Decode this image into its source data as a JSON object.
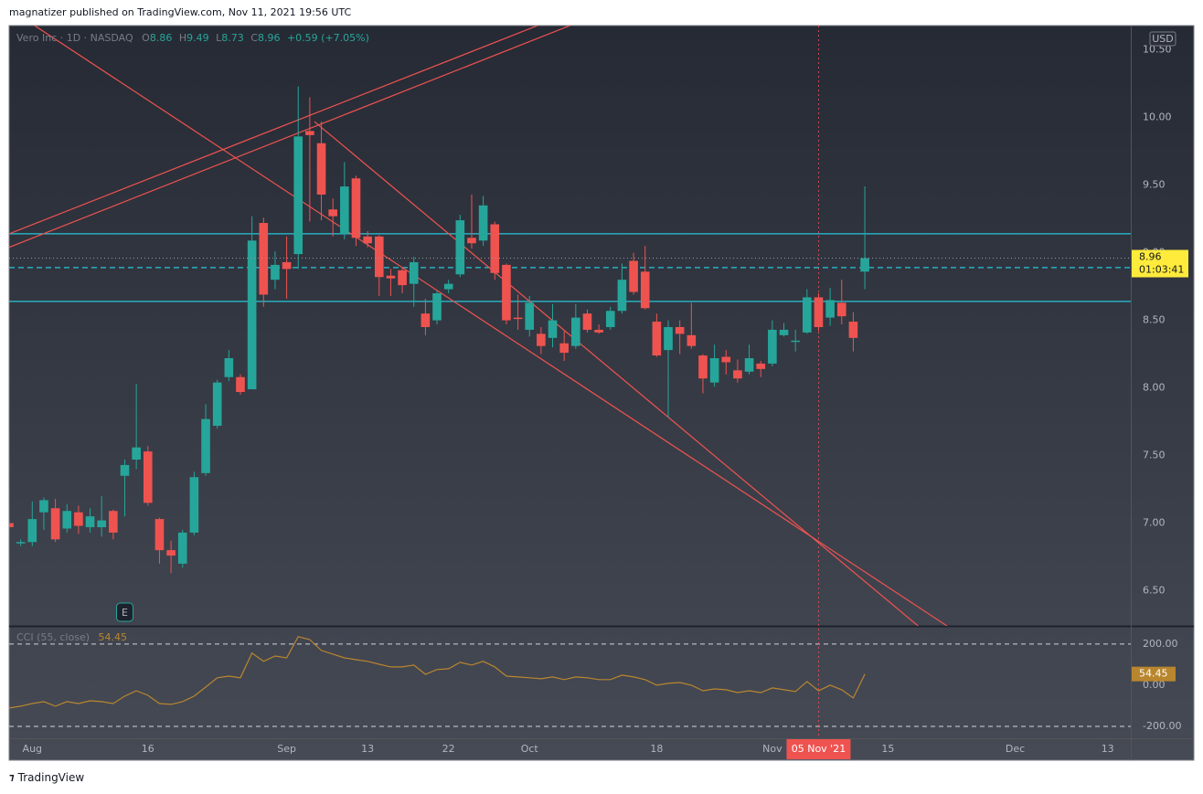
{
  "header": {
    "text": "magnatizer published on TradingView.com, Nov 11, 2021 19:56 UTC"
  },
  "footer": {
    "brand": "TradingView"
  },
  "chart_data": [
    {
      "type": "candlestick",
      "symbol": "Vero Inc · 1D · NASDAQ",
      "legend_keys": [
        "O",
        "H",
        "L",
        "C"
      ],
      "change_label": "+0.59 (+7.05%)",
      "currency": "USD",
      "countdown": "01:03:41",
      "up_color": "#26a69a",
      "down_color": "#ef5350",
      "grid": false,
      "categories": [
        null,
        null,
        "Aug",
        null,
        null,
        null,
        null,
        null,
        null,
        null,
        null,
        null,
        "16",
        null,
        null,
        null,
        null,
        null,
        null,
        null,
        null,
        null,
        null,
        null,
        "Sep",
        null,
        null,
        null,
        null,
        null,
        null,
        "13",
        null,
        null,
        null,
        null,
        null,
        null,
        "22",
        null,
        null,
        null,
        null,
        null,
        null,
        "Oct",
        null,
        null,
        null,
        null,
        null,
        null,
        null,
        null,
        null,
        null,
        "18",
        null,
        null,
        null,
        null,
        null,
        null,
        null,
        null,
        null,
        "Nov",
        null,
        null,
        null,
        null,
        null,
        null,
        null,
        null,
        null,
        "15",
        null,
        null,
        null,
        null,
        null,
        null,
        null,
        null,
        null,
        null,
        "Dec",
        null,
        null,
        null,
        null,
        null,
        null,
        null,
        "13",
        null
      ],
      "open": [
        7.0,
        6.85,
        6.86,
        7.08,
        7.11,
        6.96,
        7.08,
        6.97,
        6.97,
        7.09,
        7.35,
        7.47,
        7.53,
        7.03,
        6.8,
        6.7,
        6.93,
        7.37,
        7.72,
        8.08,
        8.08,
        7.99,
        9.22,
        8.8,
        8.93,
        8.99,
        9.9,
        9.81,
        9.32,
        9.14,
        9.55,
        9.12,
        9.12,
        8.83,
        8.87,
        8.77,
        8.55,
        8.5,
        8.73,
        8.84,
        9.11,
        9.09,
        9.21,
        8.91,
        8.52,
        8.43,
        8.4,
        8.37,
        8.33,
        8.31,
        8.55,
        8.43,
        8.45,
        8.57,
        8.94,
        8.86,
        8.49,
        8.28,
        8.45,
        8.39,
        8.24,
        8.04,
        8.23,
        8.13,
        8.12,
        8.18,
        8.18,
        8.39,
        8.34,
        8.41,
        8.67,
        8.52,
        8.63,
        8.49,
        8.86,
        null,
        null,
        null,
        null,
        null,
        null,
        null,
        null,
        null,
        null,
        null,
        null,
        null,
        null,
        null,
        null,
        null,
        null,
        null,
        null,
        null,
        null
      ],
      "high": [
        7.02,
        6.88,
        7.16,
        7.19,
        7.18,
        7.14,
        7.13,
        7.11,
        7.2,
        7.1,
        7.47,
        8.03,
        7.57,
        7.04,
        6.87,
        6.95,
        7.38,
        7.88,
        8.06,
        8.28,
        8.1,
        9.27,
        9.26,
        9.01,
        9.12,
        10.23,
        10.15,
        9.97,
        9.4,
        9.67,
        9.57,
        9.16,
        9.13,
        8.88,
        8.89,
        8.97,
        8.66,
        8.72,
        8.8,
        9.28,
        9.43,
        9.42,
        9.23,
        8.92,
        8.69,
        8.68,
        8.45,
        8.62,
        8.42,
        8.62,
        8.58,
        8.47,
        8.6,
        8.92,
        9.0,
        9.05,
        8.55,
        8.5,
        8.5,
        8.63,
        8.25,
        8.32,
        8.28,
        8.21,
        8.32,
        8.2,
        8.5,
        8.48,
        8.43,
        8.73,
        8.7,
        8.74,
        8.8,
        8.56,
        9.49,
        null,
        null,
        null,
        null,
        null,
        null,
        null,
        null,
        null,
        null,
        null,
        null,
        null,
        null,
        null,
        null,
        null,
        null,
        null,
        null,
        null,
        null
      ],
      "low": [
        6.95,
        6.83,
        6.83,
        6.95,
        6.86,
        6.93,
        6.92,
        6.93,
        6.9,
        6.88,
        7.05,
        7.4,
        7.13,
        6.7,
        6.63,
        6.67,
        6.91,
        7.35,
        7.7,
        8.05,
        7.95,
        7.99,
        8.6,
        8.73,
        8.66,
        8.88,
        9.23,
        9.24,
        9.12,
        9.1,
        9.05,
        9.04,
        8.68,
        8.68,
        8.7,
        8.6,
        8.39,
        8.47,
        8.7,
        8.82,
        9.03,
        9.05,
        8.8,
        8.47,
        8.43,
        8.38,
        8.25,
        8.3,
        8.2,
        8.29,
        8.41,
        8.4,
        8.43,
        8.55,
        8.69,
        8.58,
        8.23,
        7.78,
        8.25,
        8.29,
        7.96,
        8.01,
        8.1,
        8.04,
        8.1,
        8.08,
        8.16,
        8.38,
        8.27,
        8.4,
        8.42,
        8.46,
        8.47,
        8.27,
        8.73,
        null,
        null,
        null,
        null,
        null,
        null,
        null,
        null,
        null,
        null,
        null,
        null,
        null,
        null,
        null,
        null,
        null,
        null,
        null,
        null,
        null,
        null
      ],
      "close": [
        6.97,
        6.86,
        7.03,
        7.17,
        6.88,
        7.09,
        6.98,
        7.05,
        7.02,
        6.93,
        7.43,
        7.56,
        7.15,
        6.8,
        6.76,
        6.93,
        7.34,
        7.77,
        8.04,
        8.22,
        7.97,
        9.09,
        8.69,
        8.91,
        8.88,
        9.86,
        9.87,
        9.43,
        9.27,
        9.49,
        9.11,
        9.07,
        8.82,
        8.81,
        8.76,
        8.93,
        8.45,
        8.7,
        8.77,
        9.24,
        9.07,
        9.35,
        8.85,
        8.5,
        8.51,
        8.63,
        8.31,
        8.5,
        8.26,
        8.52,
        8.43,
        8.41,
        8.57,
        8.8,
        8.71,
        8.59,
        8.24,
        8.45,
        8.4,
        8.31,
        8.07,
        8.22,
        8.19,
        8.07,
        8.22,
        8.14,
        8.43,
        8.43,
        8.35,
        8.67,
        8.45,
        8.65,
        8.53,
        8.37,
        8.96,
        null,
        null,
        null,
        null,
        null,
        null,
        null,
        null,
        null,
        null,
        null,
        null,
        null,
        null,
        null,
        null,
        null,
        null,
        null,
        null,
        null,
        null
      ],
      "ylim": [
        6.24,
        10.68
      ],
      "yticks": [
        {
          "value": 6.5,
          "label": "6.50"
        },
        {
          "value": 7,
          "label": "7.00"
        },
        {
          "value": 7.5,
          "label": "7.50"
        },
        {
          "value": 8,
          "label": "8.00"
        },
        {
          "value": 8.5,
          "label": "8.50"
        },
        {
          "value": 9,
          "label": "9.00"
        },
        {
          "value": 9.5,
          "label": "9.50"
        },
        {
          "value": 10,
          "label": "10.00"
        },
        {
          "value": 10.5,
          "label": "10.50"
        }
      ],
      "levels": [
        {
          "value": 9.14,
          "color": "#26c6da",
          "style": "solid"
        },
        {
          "value": 8.64,
          "color": "#26c6da",
          "style": "solid"
        },
        {
          "value": 8.89,
          "color": "#26c6da",
          "style": "dashed"
        }
      ],
      "trend_lines": [
        {
          "color": "#ef5350",
          "x": [
            2.2,
            81.1
          ],
          "y": [
            10.68,
            6.24
          ]
        },
        {
          "color": "#ef5350",
          "x": [
            26.4,
            78.6
          ],
          "y": [
            9.97,
            6.24
          ]
        },
        {
          "color": "#ef5350",
          "x": [
            0,
            45.7
          ],
          "y": [
            9.14,
            10.68
          ]
        },
        {
          "color": "#ef5350",
          "x": [
            0,
            48.5
          ],
          "y": [
            9.04,
            10.68
          ]
        }
      ],
      "events": [
        {
          "index": 10,
          "label": "E"
        }
      ],
      "crosshair": {
        "index": 70,
        "label": "05 Nov '21"
      }
    },
    {
      "type": "line",
      "name": "CCI (55, close)",
      "color": "#b8862e",
      "values": [
        -111,
        -102,
        -89,
        -80,
        -102,
        -80,
        -89,
        -76,
        -80,
        -89,
        -53,
        -27,
        -49,
        -89,
        -93,
        -80,
        -53,
        -9,
        36,
        44,
        36,
        156,
        116,
        142,
        133,
        236,
        222,
        169,
        151,
        133,
        124,
        116,
        102,
        89,
        89,
        98,
        53,
        76,
        80,
        111,
        98,
        116,
        89,
        44,
        40,
        36,
        31,
        40,
        27,
        40,
        36,
        27,
        27,
        49,
        40,
        27,
        0,
        9,
        13,
        0,
        -27,
        -18,
        -22,
        -36,
        -27,
        -36,
        -13,
        -22,
        -31,
        18,
        -27,
        0,
        -22,
        -62,
        54.45,
        null,
        null,
        null,
        null,
        null,
        null,
        null,
        null,
        null,
        null,
        null,
        null,
        null,
        null,
        null,
        null,
        null,
        null,
        null,
        null,
        null,
        null
      ],
      "ylim": [
        -258,
        284
      ],
      "yticks": [
        {
          "value": 200,
          "label": "200.00"
        },
        {
          "value": 0,
          "label": "0.00"
        },
        {
          "value": -200,
          "label": "-200.00"
        }
      ]
    }
  ]
}
